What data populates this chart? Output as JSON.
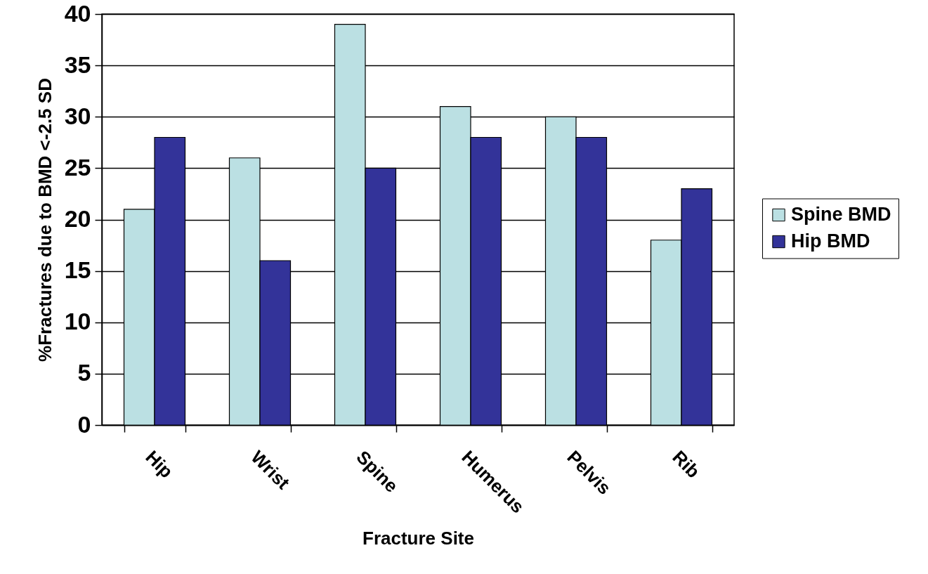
{
  "chart_data": {
    "type": "bar",
    "xlabel": "Fracture Site",
    "ylabel": "%Fractures due to BMD <-2.5 SD",
    "categories": [
      "Hip",
      "Wrist",
      "Spine",
      "Humerus",
      "Pelvis",
      "Rib"
    ],
    "series": [
      {
        "name": "Spine BMD",
        "color": "#bbe0e3",
        "values": [
          21,
          26,
          39,
          31,
          30,
          18
        ]
      },
      {
        "name": "Hip BMD",
        "color": "#333399",
        "values": [
          28,
          16,
          25,
          28,
          28,
          23
        ]
      }
    ],
    "ylim": [
      0,
      40
    ],
    "yticks": [
      0,
      5,
      10,
      15,
      20,
      25,
      30,
      35,
      40
    ],
    "grid": "y",
    "legend": "right"
  }
}
